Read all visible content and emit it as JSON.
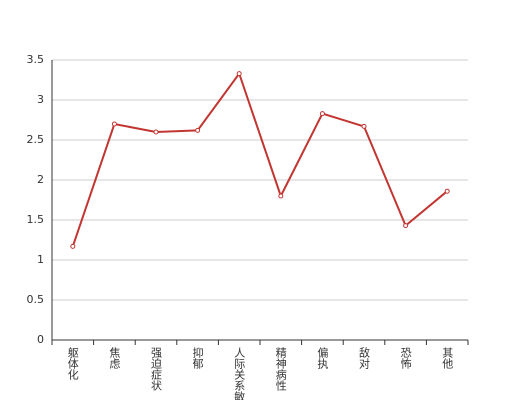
{
  "chart_data": {
    "type": "line",
    "categories": [
      "躯体化",
      "焦虑",
      "强迫症状",
      "抑郁",
      "人际关系敏感",
      "精神病性",
      "偏执",
      "敌对",
      "恐怖",
      "其他"
    ],
    "series": [
      {
        "color": "#c23531",
        "values": [
          1.17,
          2.7,
          2.6,
          2.62,
          3.33,
          1.8,
          2.83,
          2.67,
          1.43,
          1.86
        ]
      }
    ],
    "ylim": [
      0,
      3.5
    ],
    "yticks": [
      0,
      0.5,
      1,
      1.5,
      2,
      2.5,
      3,
      3.5
    ],
    "grid": true
  }
}
